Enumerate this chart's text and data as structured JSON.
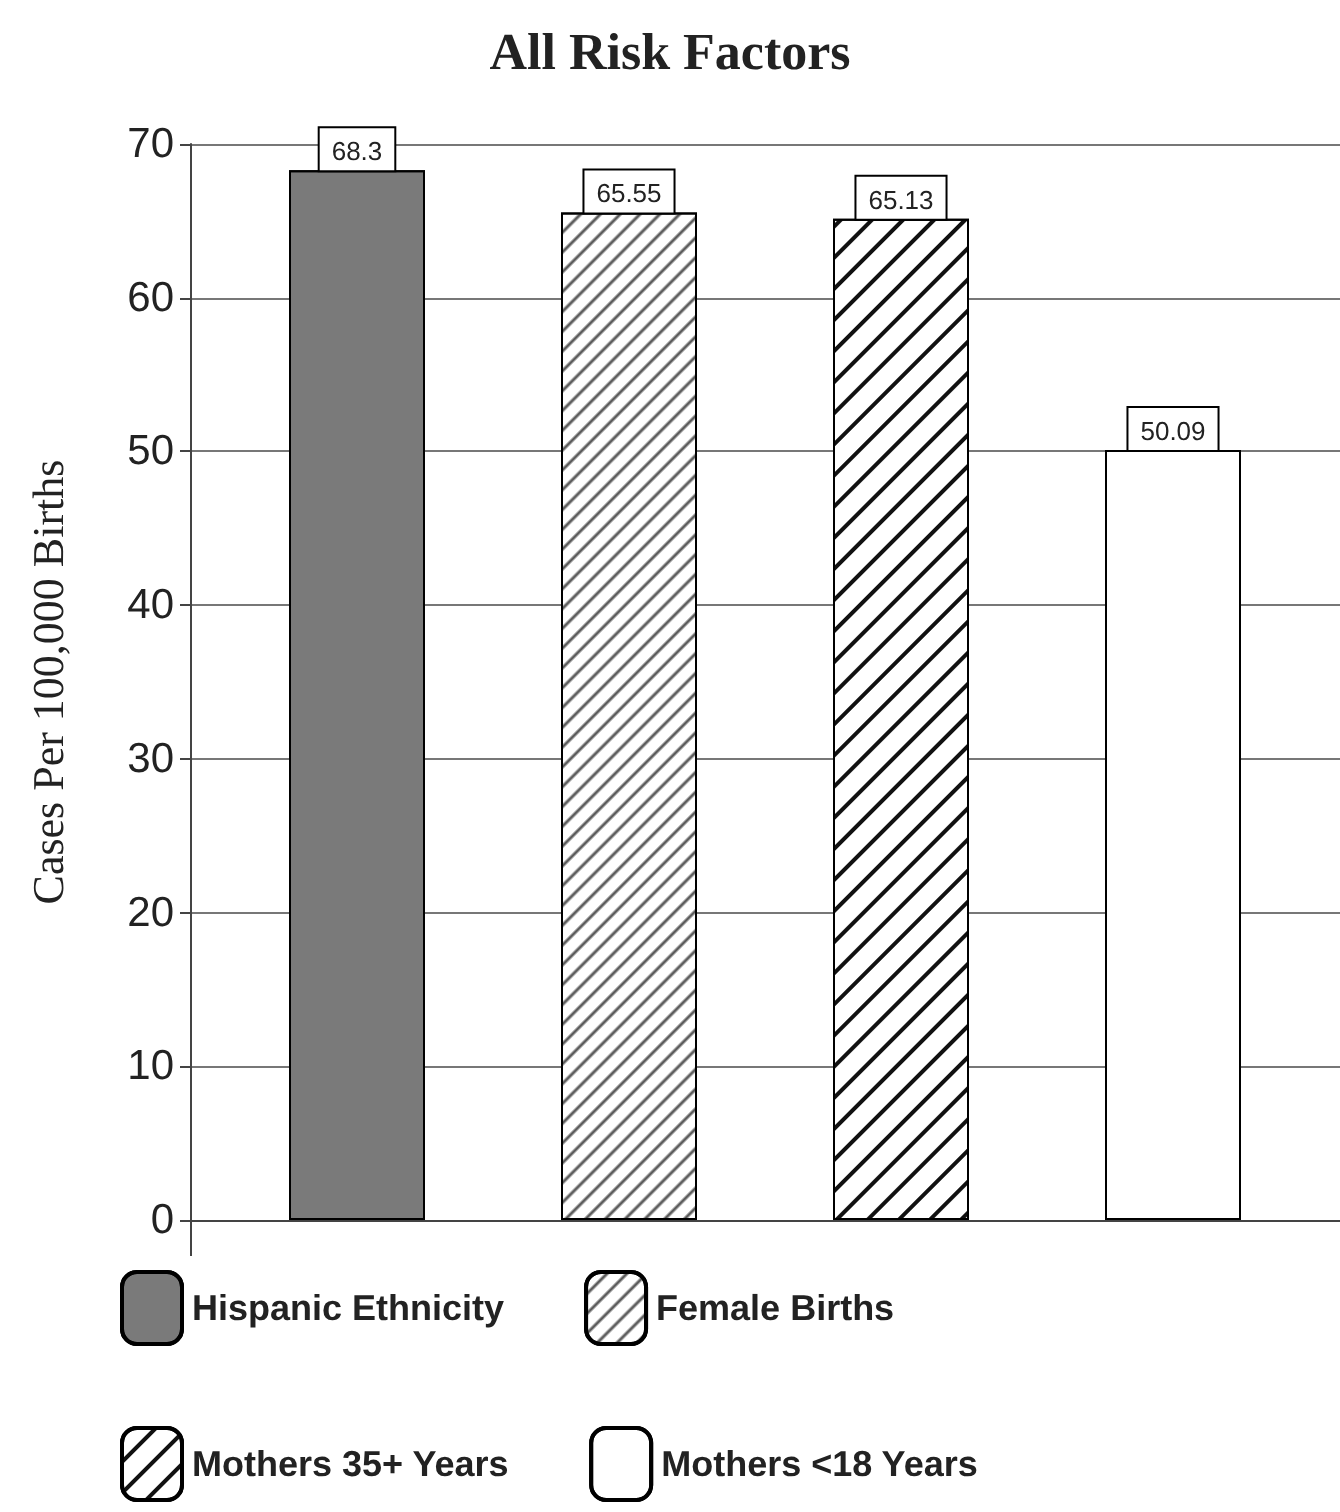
{
  "chart_data": {
    "type": "bar",
    "title": "All Risk Factors",
    "ylabel": "Cases Per 100,000 Births",
    "categories": [
      null
    ],
    "series": [
      {
        "name": "Hispanic Ethnicity",
        "color": "#7a7a7a",
        "values": [
          68.3
        ]
      },
      {
        "name": "Female Births",
        "color": "#ffffff",
        "values": [
          65.55
        ]
      },
      {
        "name": "Mothers 35+ Years",
        "color": "#ffffff",
        "values": [
          65.13
        ]
      },
      {
        "name": "Mothers <18 Years",
        "color": "#ffffff",
        "values": [
          50.09
        ]
      }
    ],
    "ylim": [
      0,
      70
    ],
    "yticks": [
      0,
      10,
      20,
      30,
      40,
      50,
      60,
      70
    ],
    "grid": "y",
    "legend": "bottom",
    "data_labels": true
  }
}
